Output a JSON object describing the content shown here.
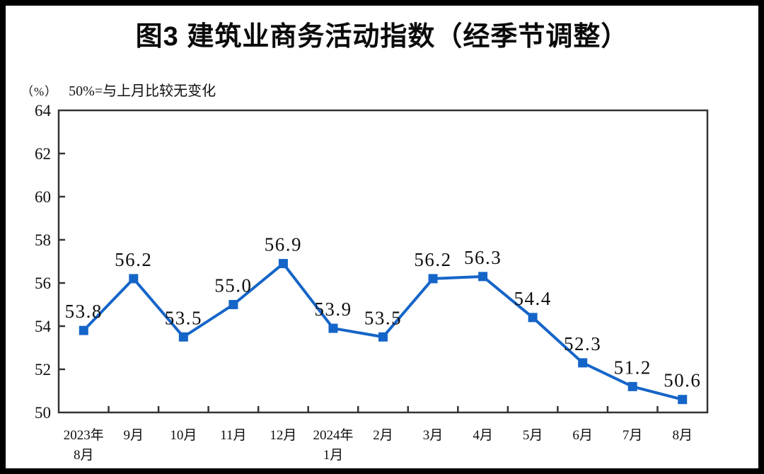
{
  "chart_data": {
    "type": "line",
    "title": "图3  建筑业商务活动指数（经季节调整）",
    "unit_label": "（%）",
    "note": "50%=与上月比较无变化",
    "categories": [
      [
        "2023年",
        "8月"
      ],
      [
        "9月"
      ],
      [
        "10月"
      ],
      [
        "11月"
      ],
      [
        "12月"
      ],
      [
        "2024年",
        "1月"
      ],
      [
        "2月"
      ],
      [
        "3月"
      ],
      [
        "4月"
      ],
      [
        "5月"
      ],
      [
        "6月"
      ],
      [
        "7月"
      ],
      [
        "8月"
      ]
    ],
    "values": [
      53.8,
      56.2,
      53.5,
      55.0,
      56.9,
      53.9,
      53.5,
      56.2,
      56.3,
      54.4,
      52.3,
      51.2,
      50.6
    ],
    "yticks": [
      50,
      52,
      54,
      56,
      58,
      60,
      62,
      64
    ],
    "ylim": [
      50,
      64
    ],
    "xlabel": "",
    "ylabel": "",
    "grid": "off",
    "legend": "none",
    "line_color": "#1565c8",
    "axis_color": "#333333",
    "marker": "square"
  }
}
